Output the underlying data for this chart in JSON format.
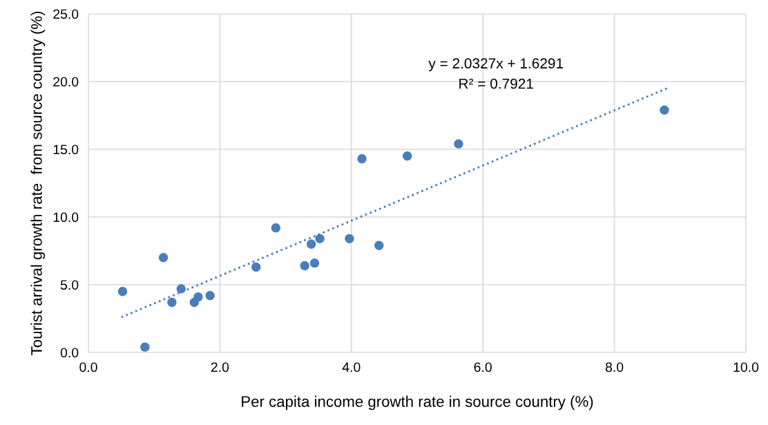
{
  "chart_data": {
    "type": "scatter",
    "xlabel": "Per capita income growth rate in source country (%)",
    "ylabel": "Tourist arrival growth rate  from source country (%)",
    "xlim": [
      0,
      10
    ],
    "ylim": [
      0,
      25
    ],
    "xticks": [
      {
        "value": 0,
        "label": "0.0"
      },
      {
        "value": 2,
        "label": "2.0"
      },
      {
        "value": 4,
        "label": "4.0"
      },
      {
        "value": 6,
        "label": "6.0"
      },
      {
        "value": 8,
        "label": "8.0"
      },
      {
        "value": 10,
        "label": "10.0"
      }
    ],
    "yticks": [
      {
        "value": 0,
        "label": "0.0"
      },
      {
        "value": 5,
        "label": "5.0"
      },
      {
        "value": 10,
        "label": "10.0"
      },
      {
        "value": 15,
        "label": "15.0"
      },
      {
        "value": 20,
        "label": "20.0"
      },
      {
        "value": 25,
        "label": "25.0"
      }
    ],
    "grid": true,
    "marker": "circle",
    "annotations": [
      "y = 2.0327x + 1.6291",
      "R² = 0.7921"
    ],
    "series": [
      {
        "color": "#4a7ebb",
        "x": [
          0.52,
          0.86,
          1.14,
          1.27,
          1.41,
          1.61,
          1.67,
          1.85,
          2.55,
          2.85,
          3.29,
          3.39,
          3.44,
          3.52,
          3.97,
          4.16,
          4.42,
          4.85,
          5.63,
          8.76
        ],
        "values": [
          4.5,
          0.4,
          7.0,
          3.7,
          4.7,
          3.7,
          4.1,
          4.2,
          6.3,
          9.2,
          6.4,
          8.0,
          6.6,
          8.4,
          8.4,
          14.3,
          7.9,
          14.5,
          15.4,
          17.9
        ]
      },
      {
        "type": "line",
        "line_style": "dotted",
        "marker": "none",
        "color": "#4a7ebb",
        "x": [
          0.5,
          8.8
        ],
        "values": [
          2.6,
          19.5
        ]
      }
    ]
  }
}
